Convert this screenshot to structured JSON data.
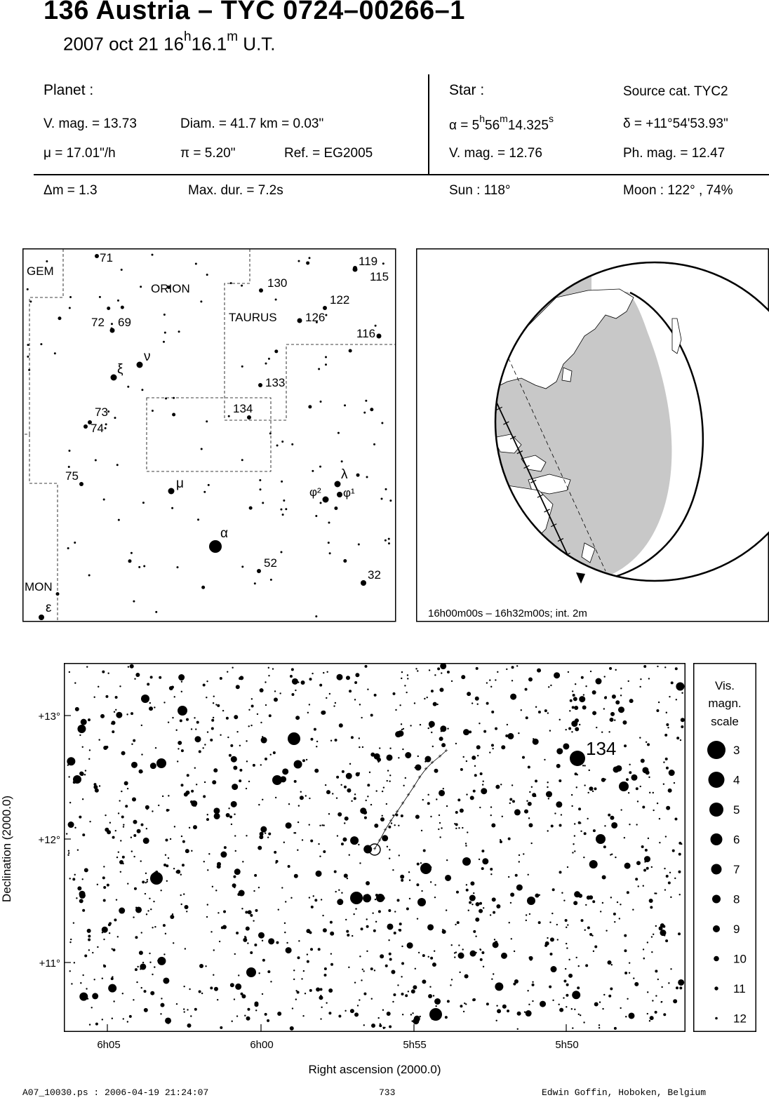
{
  "header": {
    "title": "136 Austria  –  TYC 0724–00266–1",
    "date": "2007 oct 21  16",
    "hour_sup": "h",
    "minute": "16.1",
    "minute_sup": "m",
    "ut": " U.T."
  },
  "planet": {
    "heading": "Planet :",
    "vmag": "V. mag. = 13.73",
    "diam": "Diam. = 41.7 km = 0.03\"",
    "mu": "μ =  17.01\"/h",
    "pi": "π =  5.20\"",
    "ref": "Ref. = EG2005"
  },
  "star": {
    "heading": "Star :",
    "source": "Source cat.  TYC2",
    "alpha_prefix": "α =  5",
    "alpha_h": "h",
    "alpha_mid": "56",
    "alpha_m": "m",
    "alpha_rest": "14.325",
    "alpha_s": "s",
    "delta": "δ = +11°54'53.93\"",
    "vmag": "V. mag. = 12.76",
    "phmag": "Ph. mag. = 12.47"
  },
  "event": {
    "dm": "Δm = 1.3",
    "maxdur": "Max. dur. = 7.2s",
    "sun": "Sun : 118°",
    "moon": "Moon : 122° , 74%"
  },
  "finder": {
    "constellations": [
      "GEM",
      "ORION",
      "TAURUS",
      "MON"
    ],
    "labels": [
      {
        "t": "71"
      },
      {
        "t": "119"
      },
      {
        "t": "115"
      },
      {
        "t": "130"
      },
      {
        "t": "122"
      },
      {
        "t": "126"
      },
      {
        "t": "72"
      },
      {
        "t": "69"
      },
      {
        "t": "116"
      },
      {
        "t": "ν"
      },
      {
        "t": "ξ"
      },
      {
        "t": "133"
      },
      {
        "t": "134"
      },
      {
        "t": "73"
      },
      {
        "t": "74"
      },
      {
        "t": "75"
      },
      {
        "t": "μ"
      },
      {
        "t": "λ"
      },
      {
        "t": "φ²"
      },
      {
        "t": "φ¹"
      },
      {
        "t": "α"
      },
      {
        "t": "52"
      },
      {
        "t": "32"
      },
      {
        "t": "ε"
      }
    ]
  },
  "globe": {
    "caption": "16h00m00s – 16h32m00s; int.  2m"
  },
  "chart": {
    "star_label": "134",
    "y_ticks": [
      "+13°",
      "+12°",
      "+11°"
    ],
    "x_ticks": [
      "6h05",
      "6h00",
      "5h55",
      "5h50"
    ],
    "xlabel": "Right ascension (2000.0)",
    "ylabel": "Declination (2000.0)"
  },
  "legend": {
    "title1": "Vis.",
    "title2": "magn.",
    "title3": "scale",
    "mags": [
      "3",
      "4",
      "5",
      "6",
      "7",
      "8",
      "9",
      "10",
      "11",
      "12"
    ]
  },
  "footer": {
    "left": "A07_10030.ps : 2006-04-19 21:24:07",
    "center": "733",
    "right": "Edwin Goffin, Hoboken, Belgium"
  }
}
